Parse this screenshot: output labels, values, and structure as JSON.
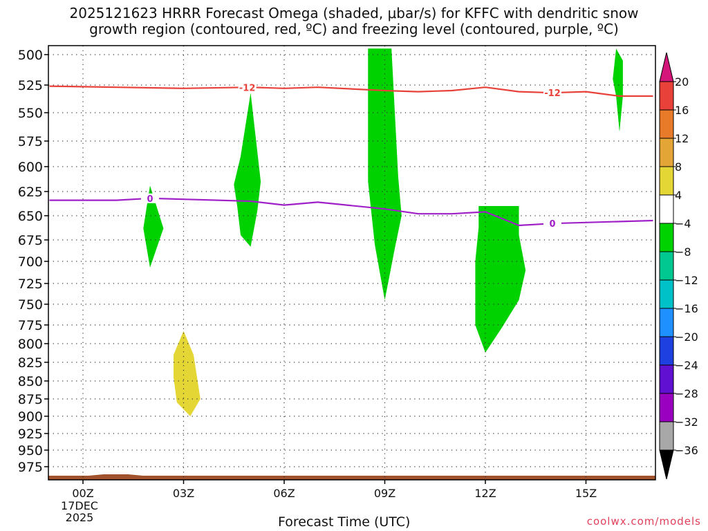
{
  "header": {
    "title_line1": "2025121623 HRRR Forecast Omega (shaded, μbar/s) for KFFC with dendritic snow",
    "title_line2": "growth region (contoured, red, ºC) and freezing level (contoured, purple, ºC)"
  },
  "credit": "coolwx.com/models",
  "chart_data": {
    "type": "time-height cross section",
    "xlabel": "Forecast Time (UTC)",
    "x_ticks": [
      {
        "hour": 0,
        "label": "00Z"
      },
      {
        "hour": 3,
        "label": "03Z"
      },
      {
        "hour": 6,
        "label": "06Z"
      },
      {
        "hour": 9,
        "label": "09Z"
      },
      {
        "hour": 12,
        "label": "12Z"
      },
      {
        "hour": 15,
        "label": "15Z"
      }
    ],
    "date_label": [
      "17DEC",
      "2025"
    ],
    "xlim": [
      -1,
      17
    ],
    "ylim": [
      500,
      995
    ],
    "y_inverted": true,
    "y_ticks": [
      500,
      525,
      550,
      575,
      600,
      625,
      650,
      675,
      700,
      725,
      750,
      775,
      800,
      825,
      850,
      875,
      900,
      925,
      950,
      975
    ],
    "grid": true,
    "contours": [
      {
        "name": "dendritic snow growth -12",
        "color": "#e8413a",
        "labels": [
          {
            "text": "-12",
            "hour": 4.9
          },
          {
            "text": "-12",
            "hour": 14
          }
        ],
        "points": [
          [
            -1,
            526
          ],
          [
            1,
            527
          ],
          [
            3,
            528
          ],
          [
            5,
            527
          ],
          [
            6,
            528
          ],
          [
            7,
            527
          ],
          [
            9,
            530
          ],
          [
            10,
            531
          ],
          [
            11,
            530
          ],
          [
            12,
            527
          ],
          [
            13,
            531
          ],
          [
            14,
            532
          ],
          [
            15,
            531
          ],
          [
            16,
            535
          ],
          [
            17,
            535
          ]
        ]
      },
      {
        "name": "freezing level 0",
        "color": "#a020c8",
        "labels": [
          {
            "text": "0",
            "hour": 2
          },
          {
            "text": "0",
            "hour": 14
          }
        ],
        "points": [
          [
            -1,
            634
          ],
          [
            1,
            634
          ],
          [
            2,
            632
          ],
          [
            3,
            633
          ],
          [
            5,
            635
          ],
          [
            6,
            639
          ],
          [
            7,
            636
          ],
          [
            9,
            643
          ],
          [
            10,
            648
          ],
          [
            11,
            648
          ],
          [
            12,
            646
          ],
          [
            13,
            660
          ],
          [
            14,
            658
          ],
          [
            15,
            657
          ],
          [
            17,
            655
          ]
        ]
      }
    ],
    "shaded_regions": [
      {
        "value_range": [
          -8,
          -4
        ],
        "color": "#00d200",
        "points": [
          [
            2,
            619
          ],
          [
            2.4,
            663
          ],
          [
            2,
            707
          ],
          [
            1.8,
            663
          ]
        ]
      },
      {
        "value_range": [
          -8,
          -4
        ],
        "color": "#00d200",
        "points": [
          [
            5,
            532
          ],
          [
            5.3,
            615
          ],
          [
            5.2,
            645
          ],
          [
            5,
            683
          ],
          [
            4.7,
            670
          ],
          [
            4.6,
            640
          ],
          [
            4.5,
            618
          ],
          [
            4.7,
            590
          ]
        ]
      },
      {
        "value_range": [
          -8,
          -4
        ],
        "color": "#00d200",
        "points": [
          [
            8.5,
            495
          ],
          [
            9.2,
            495
          ],
          [
            9.4,
            610
          ],
          [
            9.5,
            650
          ],
          [
            9.3,
            685
          ],
          [
            9,
            745
          ],
          [
            8.7,
            680
          ],
          [
            8.5,
            615
          ]
        ]
      },
      {
        "value_range": [
          -8,
          -4
        ],
        "color": "#00d200",
        "points": [
          [
            11.8,
            640
          ],
          [
            13,
            640
          ],
          [
            13,
            670
          ],
          [
            13.2,
            710
          ],
          [
            13,
            745
          ],
          [
            12.5,
            778
          ],
          [
            12,
            812
          ],
          [
            11.7,
            775
          ],
          [
            11.7,
            700
          ],
          [
            11.8,
            662
          ]
        ]
      },
      {
        "value_range": [
          -8,
          -4
        ],
        "color": "#00d200",
        "points": [
          [
            15.9,
            495
          ],
          [
            16.1,
            505
          ],
          [
            16.1,
            535
          ],
          [
            16,
            567
          ],
          [
            15.9,
            535
          ],
          [
            15.8,
            520
          ]
        ]
      },
      {
        "value_range": [
          4,
          8
        ],
        "color": "#e4d634",
        "points": [
          [
            3,
            783
          ],
          [
            3.3,
            815
          ],
          [
            3.5,
            875
          ],
          [
            3.2,
            900
          ],
          [
            2.8,
            880
          ],
          [
            2.7,
            845
          ],
          [
            2.7,
            815
          ]
        ]
      }
    ],
    "surface_band": {
      "color": "#a0522d"
    },
    "colorbar": {
      "tick_labels": [
        "20",
        "16",
        "12",
        "8",
        "4",
        "−4",
        "−8",
        "−12",
        "−16",
        "−20",
        "−24",
        "−28",
        "−32",
        "−36"
      ],
      "top_arrow_color": "#d4157a",
      "bottom_arrow_color": "#000000",
      "bins": [
        {
          "range": "16 to 20",
          "color": "#e8413a"
        },
        {
          "range": "12 to 16",
          "color": "#e87b2a"
        },
        {
          "range": "8 to 12",
          "color": "#e3a636"
        },
        {
          "range": "4 to 8",
          "color": "#e4d634"
        },
        {
          "range": "-4 to 4",
          "color": "#ffffff"
        },
        {
          "range": "-8 to -4",
          "color": "#00d200"
        },
        {
          "range": "-12 to -8",
          "color": "#00c890"
        },
        {
          "range": "-16 to -12",
          "color": "#00c0c8"
        },
        {
          "range": "-20 to -16",
          "color": "#1e90ff"
        },
        {
          "range": "-24 to -20",
          "color": "#1e40e0"
        },
        {
          "range": "-28 to -24",
          "color": "#6010d0"
        },
        {
          "range": "-32 to -28",
          "color": "#9a00c0"
        },
        {
          "range": "-36 to -32",
          "color": "#a8a8a8"
        }
      ]
    }
  }
}
